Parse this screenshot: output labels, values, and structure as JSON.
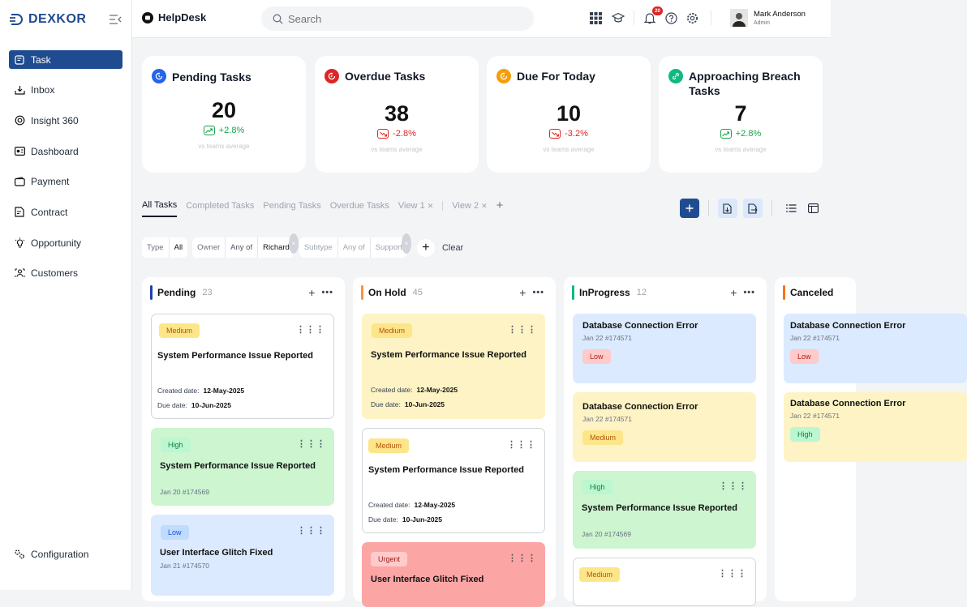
{
  "brand": {
    "name": "DEXKOR"
  },
  "sidebar": {
    "items": [
      {
        "label": "Task",
        "icon": "task-icon",
        "active": true
      },
      {
        "label": "Inbox",
        "icon": "inbox-icon"
      },
      {
        "label": "Insight 360",
        "icon": "insight-icon"
      },
      {
        "label": "Dashboard",
        "icon": "dashboard-icon"
      },
      {
        "label": "Payment",
        "icon": "payment-icon"
      },
      {
        "label": "Contract",
        "icon": "contract-icon"
      },
      {
        "label": "Opportunity",
        "icon": "bulb-icon"
      },
      {
        "label": "Customers",
        "icon": "customers-icon"
      }
    ],
    "bottom": {
      "label": "Configuration",
      "icon": "gears-icon"
    }
  },
  "header": {
    "title": "HelpDesk",
    "search_placeholder": "Search",
    "notifications": "20",
    "user": {
      "name": "Mark Anderson",
      "role": "Admin"
    }
  },
  "stats": [
    {
      "title": "Pending Tasks",
      "value": "20",
      "change": "+2.8%",
      "direction": "up",
      "caption": "vs teams average",
      "color": "#2563eb"
    },
    {
      "title": "Overdue Tasks",
      "value": "38",
      "change": "-2.8%",
      "direction": "down",
      "caption": "vs teams average",
      "color": "#dc2626"
    },
    {
      "title": "Due For Today",
      "value": "10",
      "change": "-3.2%",
      "direction": "down",
      "caption": "vs teams average",
      "color": "#f59e0b"
    },
    {
      "title": "Approaching Breach Tasks",
      "value": "7",
      "change": "+2.8%",
      "direction": "up",
      "caption": "vs teams average",
      "color": "#10b981"
    }
  ],
  "tabs": [
    {
      "label": "All Tasks",
      "active": true
    },
    {
      "label": "Completed Tasks"
    },
    {
      "label": "Pending Tasks"
    },
    {
      "label": "Overdue Tasks"
    },
    {
      "label": "View 1",
      "closable": true
    },
    {
      "label": "View 2",
      "closable": true
    }
  ],
  "filters": [
    {
      "key": "Type",
      "value": "All"
    },
    {
      "key": "Owner",
      "op": "Any of",
      "value": "Richard",
      "removable": true
    },
    {
      "key": "Subtype",
      "op": "Any of",
      "value": "Support",
      "removable": true,
      "dim": true
    }
  ],
  "clear_label": "Clear",
  "columns": [
    {
      "title": "Pending",
      "count": "23",
      "color": "#1e40af",
      "cards": [
        {
          "priority": "Medium",
          "title": "System Performance Issue Reported",
          "created_label": "Created date:",
          "created": "12-May-2025",
          "due_label": "Due date:",
          "due": "10-Jun-2025"
        },
        {
          "priority": "High",
          "title": "System Performance Issue Reported",
          "sub": "Jan 20 #174569"
        },
        {
          "priority": "Low",
          "title": "User Interface Glitch Fixed",
          "sub": "Jan 21 #174570"
        }
      ]
    },
    {
      "title": "On Hold",
      "count": "45",
      "color": "#fb923c",
      "cards": [
        {
          "priority": "Medium",
          "title": "System Performance Issue Reported",
          "created_label": "Created date:",
          "created": "12-May-2025",
          "due_label": "Due date:",
          "due": "10-Jun-2025"
        },
        {
          "priority": "Medium",
          "title": "System Performance Issue Reported",
          "created_label": "Created date:",
          "created": "12-May-2025",
          "due_label": "Due date:",
          "due": "10-Jun-2025"
        },
        {
          "priority": "Urgent",
          "title": "User Interface Glitch Fixed"
        }
      ]
    },
    {
      "title": "InProgress",
      "count": "12",
      "color": "#10b981",
      "cards": [
        {
          "title": "Database Connection Error",
          "sub": "Jan 22 #174571",
          "priority": "Low"
        },
        {
          "title": "Database Connection Error",
          "sub": "Jan 22 #174571",
          "priority": "Medium"
        },
        {
          "priority": "High",
          "title": "System Performance Issue Reported",
          "sub": "Jan 20 #174569"
        },
        {
          "priority": "Medium"
        }
      ]
    },
    {
      "title": "Canceled",
      "color": "#f97316",
      "cards": [
        {
          "title": "Database Connection Error",
          "sub": "Jan 22 #174571",
          "priority": "Low"
        },
        {
          "title": "Database Connection Error",
          "sub": "Jan 22 #174571",
          "priority": "High"
        }
      ]
    }
  ]
}
